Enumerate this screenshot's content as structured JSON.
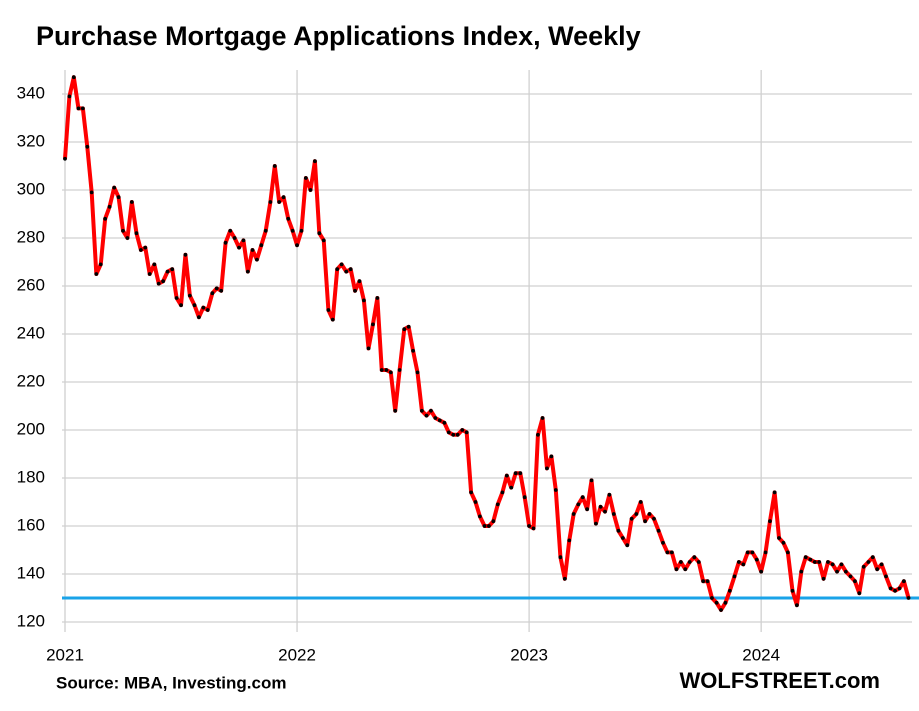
{
  "chart_data": {
    "type": "line",
    "title": "Purchase Mortgage Applications Index, Weekly",
    "source": "Source: MBA, Investing.com",
    "brand": "WOLFSTREET.com",
    "xlim": [
      2021,
      2024.65
    ],
    "xticks": [
      2021,
      2022,
      2023,
      2024
    ],
    "ylim": [
      120,
      350
    ],
    "yticks": [
      120,
      140,
      160,
      180,
      200,
      220,
      240,
      260,
      280,
      300,
      320,
      340
    ],
    "grid": true,
    "reference_line": {
      "value": 130,
      "color": "#1aa3e8"
    },
    "x": [
      2021,
      2021.019,
      2021.038,
      2021.058,
      2021.077,
      2021.096,
      2021.115,
      2021.135,
      2021.154,
      2021.173,
      2021.192,
      2021.212,
      2021.231,
      2021.25,
      2021.269,
      2021.288,
      2021.308,
      2021.327,
      2021.346,
      2021.365,
      2021.385,
      2021.404,
      2021.423,
      2021.442,
      2021.462,
      2021.481,
      2021.5,
      2021.519,
      2021.538,
      2021.558,
      2021.577,
      2021.596,
      2021.615,
      2021.635,
      2021.654,
      2021.673,
      2021.692,
      2021.712,
      2021.731,
      2021.75,
      2021.769,
      2021.788,
      2021.808,
      2021.827,
      2021.846,
      2021.865,
      2021.885,
      2021.904,
      2021.923,
      2021.942,
      2021.962,
      2021.981,
      2022,
      2022.019,
      2022.038,
      2022.058,
      2022.077,
      2022.096,
      2022.115,
      2022.135,
      2022.154,
      2022.173,
      2022.192,
      2022.212,
      2022.231,
      2022.25,
      2022.269,
      2022.288,
      2022.308,
      2022.327,
      2022.346,
      2022.365,
      2022.385,
      2022.404,
      2022.423,
      2022.442,
      2022.462,
      2022.481,
      2022.5,
      2022.519,
      2022.538,
      2022.558,
      2022.577,
      2022.596,
      2022.615,
      2022.635,
      2022.654,
      2022.673,
      2022.692,
      2022.712,
      2022.731,
      2022.75,
      2022.769,
      2022.788,
      2022.808,
      2022.827,
      2022.846,
      2022.865,
      2022.885,
      2022.904,
      2022.923,
      2022.942,
      2022.962,
      2022.981,
      2023,
      2023.019,
      2023.038,
      2023.058,
      2023.077,
      2023.096,
      2023.115,
      2023.135,
      2023.154,
      2023.173,
      2023.192,
      2023.212,
      2023.231,
      2023.25,
      2023.269,
      2023.288,
      2023.308,
      2023.327,
      2023.346,
      2023.365,
      2023.385,
      2023.404,
      2023.423,
      2023.442,
      2023.462,
      2023.481,
      2023.5,
      2023.519,
      2023.538,
      2023.558,
      2023.577,
      2023.596,
      2023.615,
      2023.635,
      2023.654,
      2023.673,
      2023.692,
      2023.712,
      2023.731,
      2023.75,
      2023.769,
      2023.788,
      2023.808,
      2023.827,
      2023.846,
      2023.865,
      2023.885,
      2023.904,
      2023.923,
      2023.942,
      2023.962,
      2023.981,
      2024,
      2024.019,
      2024.038,
      2024.058,
      2024.077,
      2024.096,
      2024.115,
      2024.135,
      2024.154,
      2024.173,
      2024.192,
      2024.212,
      2024.231,
      2024.25,
      2024.269,
      2024.288,
      2024.308,
      2024.327,
      2024.346,
      2024.365,
      2024.385,
      2024.404,
      2024.423,
      2024.442,
      2024.462,
      2024.481,
      2024.5,
      2024.519,
      2024.538,
      2024.558,
      2024.577,
      2024.596,
      2024.615,
      2024.635
    ],
    "series": [
      {
        "color": "#ff0000",
        "marker_color": "#000000",
        "values": [
          313,
          339,
          347,
          334,
          334,
          318,
          299,
          265,
          269,
          288,
          293,
          301,
          297,
          283,
          280,
          295,
          282,
          275,
          276,
          265,
          269,
          261,
          262,
          266,
          267,
          255,
          252,
          273,
          256,
          252,
          247,
          251,
          250,
          257,
          259,
          258,
          278,
          283,
          280,
          276,
          279,
          266,
          275,
          271,
          277,
          283,
          295,
          310,
          295,
          297,
          288,
          283,
          277,
          283,
          305,
          300,
          312,
          282,
          279,
          250,
          246,
          267,
          269,
          266,
          267,
          258,
          262,
          254,
          234,
          244,
          255,
          225,
          225,
          224,
          208,
          225,
          242,
          243,
          233,
          224,
          208,
          206,
          208,
          205,
          204,
          203,
          199,
          198,
          198,
          200,
          199,
          174,
          170,
          164,
          160,
          160,
          162,
          169,
          174,
          181,
          176,
          182,
          182,
          172,
          160,
          159,
          198,
          205,
          184,
          189,
          175,
          147,
          138,
          154,
          165,
          169,
          172,
          167,
          179,
          161,
          168,
          166,
          173,
          165,
          158,
          155,
          152,
          163,
          165,
          170,
          162,
          165,
          163,
          158,
          153,
          149,
          149,
          142,
          145,
          142,
          145,
          147,
          145,
          137,
          137,
          130,
          128,
          125,
          128,
          133,
          139,
          145,
          144,
          149,
          149,
          146,
          141,
          149,
          162,
          174,
          155,
          153,
          149,
          133,
          127,
          141,
          147,
          146,
          145,
          145,
          138,
          145,
          144,
          141,
          144,
          141,
          139,
          137,
          132,
          143,
          145,
          147,
          142,
          144,
          139,
          134,
          133,
          134,
          137,
          130
        ]
      }
    ]
  }
}
